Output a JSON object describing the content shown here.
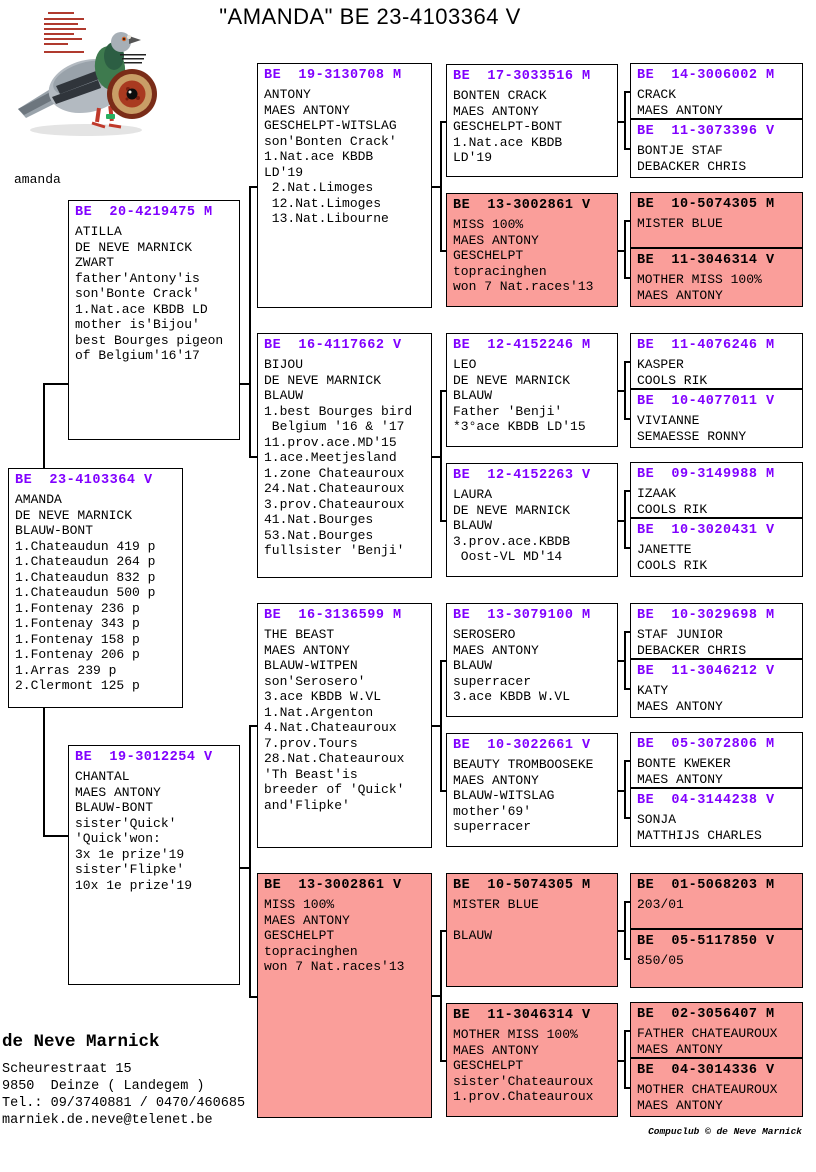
{
  "title": "\"AMANDA\"  BE  23-4103364 V",
  "photo_label": "amanda",
  "colors": {
    "ring_header": "#8000FF",
    "pink_box_bg": "#FA9E9A"
  },
  "boxes": {
    "amanda": {
      "ring": "BE  23-4103364 V",
      "lines": [
        "AMANDA",
        "DE NEVE MARNICK",
        "BLAUW-BONT",
        "1.Chateaudun 419 p",
        "1.Chateaudun 264 p",
        "1.Chateaudun 832 p",
        "1.Chateaudun 500 p",
        "1.Fontenay 236 p",
        "1.Fontenay 343 p",
        "1.Fontenay 158 p",
        "1.Fontenay 206 p",
        "1.Arras 239 p",
        "2.Clermont 125 p"
      ]
    },
    "atilla": {
      "ring": "BE  20-4219475 M",
      "lines": [
        "ATILLA",
        "DE NEVE MARNICK",
        "ZWART",
        "father'Antony'is",
        "son'Bonte Crack'",
        "1.Nat.ace KBDB LD",
        "mother is'Bijou'",
        "best Bourges pigeon",
        "of Belgium'16'17"
      ]
    },
    "chantal": {
      "ring": "BE  19-3012254 V",
      "lines": [
        "CHANTAL",
        "MAES ANTONY",
        "BLAUW-BONT",
        "sister'Quick'",
        "'Quick'won:",
        "3x 1e prize'19",
        "sister'Flipke'",
        "10x 1e prize'19"
      ]
    },
    "antony": {
      "ring": "BE  19-3130708 M",
      "lines": [
        "ANTONY",
        "MAES ANTONY",
        "GESCHELPT-WITSLAG",
        "son'Bonten Crack'",
        "1.Nat.ace KBDB",
        "LD'19",
        " 2.Nat.Limoges",
        " 12.Nat.Limoges",
        " 13.Nat.Libourne"
      ]
    },
    "bijou": {
      "ring": "BE  16-4117662 V",
      "lines": [
        "BIJOU",
        "DE NEVE MARNICK",
        "BLAUW",
        "1.best Bourges bird",
        " Belgium '16 & '17",
        "11.prov.ace.MD'15",
        "1.ace.Meetjesland",
        "1.zone Chateauroux",
        "24.Nat.Chateauroux",
        "3.prov.Chateauroux",
        "41.Nat.Bourges",
        "53.Nat.Bourges",
        "fullsister 'Benji'"
      ]
    },
    "the_beast": {
      "ring": "BE  16-3136599 M",
      "lines": [
        "THE BEAST",
        "MAES ANTONY",
        "BLAUW-WITPEN",
        "son'Serosero'",
        "3.ace KBDB W.VL",
        "1.Nat.Argenton",
        "4.Nat.Chateauroux",
        "7.prov.Tours",
        "28.Nat.Chateauroux",
        "'Th Beast'is",
        "breeder of 'Quick'",
        "and'Flipke'"
      ]
    },
    "miss100": {
      "ring": "BE  13-3002861 V",
      "lines": [
        "MISS 100%",
        "MAES ANTONY",
        "GESCHELPT",
        "topracinghen",
        "won 7 Nat.races'13"
      ]
    },
    "bonten_crack": {
      "ring": "BE  17-3033516 M",
      "lines": [
        "BONTEN CRACK",
        "MAES ANTONY",
        "GESCHELPT-BONT",
        "1.Nat.ace KBDB",
        "LD'19"
      ]
    },
    "leo": {
      "ring": "BE  12-4152246 M",
      "lines": [
        "LEO",
        "DE NEVE MARNICK",
        "BLAUW",
        "Father 'Benji'",
        "*3°ace KBDB LD'15"
      ]
    },
    "laura": {
      "ring": "BE  12-4152263 V",
      "lines": [
        "LAURA",
        "DE NEVE MARNICK",
        "BLAUW",
        "3.prov.ace.KBDB",
        " Oost-VL MD'14"
      ]
    },
    "serosero": {
      "ring": "BE  13-3079100 M",
      "lines": [
        "SEROSERO",
        "MAES ANTONY",
        "BLAUW",
        "superracer",
        "3.ace KBDB W.VL"
      ]
    },
    "beauty": {
      "ring": "BE  10-3022661 V",
      "lines": [
        "BEAUTY TROMBOOSEKE",
        "MAES ANTONY",
        "BLAUW-WITSLAG",
        "mother'69'",
        "superracer"
      ]
    },
    "mister_blue_g4": {
      "ring": "BE  10-5074305 M",
      "lines": [
        "MISTER BLUE",
        "",
        "BLAUW"
      ]
    },
    "mother_miss_g4": {
      "ring": "BE  11-3046314 V",
      "lines": [
        "MOTHER MISS 100%",
        "MAES ANTONY",
        "GESCHELPT",
        "sister'Chateauroux",
        "1.prov.Chateauroux"
      ]
    },
    "crack": {
      "ring": "BE  14-3006002 M",
      "lines": [
        "CRACK",
        "MAES ANTONY"
      ]
    },
    "bontje_staf": {
      "ring": "BE  11-3073396 V",
      "lines": [
        "BONTJE STAF",
        "DEBACKER CHRIS"
      ]
    },
    "mister_blue_g5": {
      "ring": "BE  10-5074305 M",
      "lines": [
        "MISTER BLUE"
      ]
    },
    "mother_miss_g5": {
      "ring": "BE  11-3046314 V",
      "lines": [
        "MOTHER MISS 100%",
        "MAES ANTONY"
      ]
    },
    "kasper": {
      "ring": "BE  11-4076246 M",
      "lines": [
        "KASPER",
        "COOLS RIK"
      ]
    },
    "vivianne": {
      "ring": "BE  10-4077011 V",
      "lines": [
        "VIVIANNE",
        "SEMAESSE RONNY"
      ]
    },
    "izaak": {
      "ring": "BE  09-3149988 M",
      "lines": [
        "IZAAK",
        "COOLS RIK"
      ]
    },
    "janette": {
      "ring": "BE  10-3020431 V",
      "lines": [
        "JANETTE",
        "COOLS RIK"
      ]
    },
    "staf_junior": {
      "ring": "BE  10-3029698 M",
      "lines": [
        "STAF JUNIOR",
        "DEBACKER CHRIS"
      ]
    },
    "katy": {
      "ring": "BE  11-3046212 V",
      "lines": [
        "KATY",
        "MAES ANTONY"
      ]
    },
    "bonte_kweker": {
      "ring": "BE  05-3072806 M",
      "lines": [
        "BONTE KWEKER",
        "MAES ANTONY"
      ]
    },
    "sonja": {
      "ring": "BE  04-3144238 V",
      "lines": [
        "SONJA",
        "MATTHIJS CHARLES"
      ]
    },
    "b203_01": {
      "ring": "BE  01-5068203 M",
      "lines": [
        "203/01"
      ]
    },
    "b850_05": {
      "ring": "BE  05-5117850 V",
      "lines": [
        "850/05"
      ]
    },
    "father_chateauroux": {
      "ring": "BE  02-3056407 M",
      "lines": [
        "FATHER CHATEAUROUX",
        "MAES ANTONY"
      ]
    },
    "mother_chateauroux": {
      "ring": "BE  04-3014336 V",
      "lines": [
        "MOTHER CHATEAUROUX",
        "MAES ANTONY"
      ]
    }
  },
  "footer": {
    "owner": "de Neve Marnick",
    "address": [
      "Scheurestraat 15",
      "9850  Deinze ( Landegem )",
      "Tel.: 09/3740881 / 0470/460685",
      "marniek.de.neve@telenet.be"
    ],
    "credit": "Compuclub © de Neve Marnick"
  }
}
